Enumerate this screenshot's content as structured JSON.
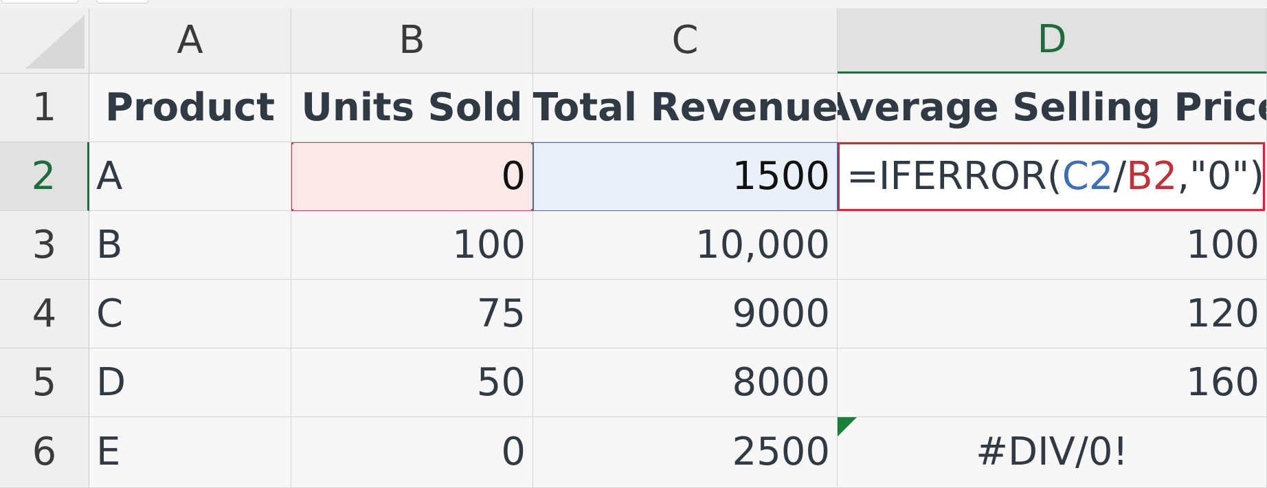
{
  "sheet": {
    "columns": [
      "A",
      "B",
      "C",
      "D"
    ],
    "active_column": "D",
    "active_row": "2",
    "rows": [
      {
        "num": "1",
        "cells": [
          "Product",
          "Units Sold",
          "Total Revenue",
          "Average Selling Price"
        ]
      },
      {
        "num": "2",
        "cells": [
          "A",
          "0",
          "1500",
          ""
        ]
      },
      {
        "num": "3",
        "cells": [
          "B",
          "100",
          "10,000",
          "100"
        ]
      },
      {
        "num": "4",
        "cells": [
          "C",
          "75",
          "9000",
          "120"
        ]
      },
      {
        "num": "5",
        "cells": [
          "D",
          "50",
          "8000",
          "160"
        ]
      },
      {
        "num": "6",
        "cells": [
          "E",
          "0",
          "2500",
          "#DIV/0!"
        ]
      }
    ],
    "formula": {
      "prefix": "=IFERROR(",
      "ref1": "C2",
      "op": "/",
      "ref2": "B2",
      "suffix": ",\"0\")"
    },
    "colors": {
      "accent_green": "#1e6b3c",
      "ref_blue": "#3d6fb5",
      "ref_red": "#c0323b",
      "edit_border": "#e0242f",
      "error_flag": "#1a7f37"
    }
  }
}
